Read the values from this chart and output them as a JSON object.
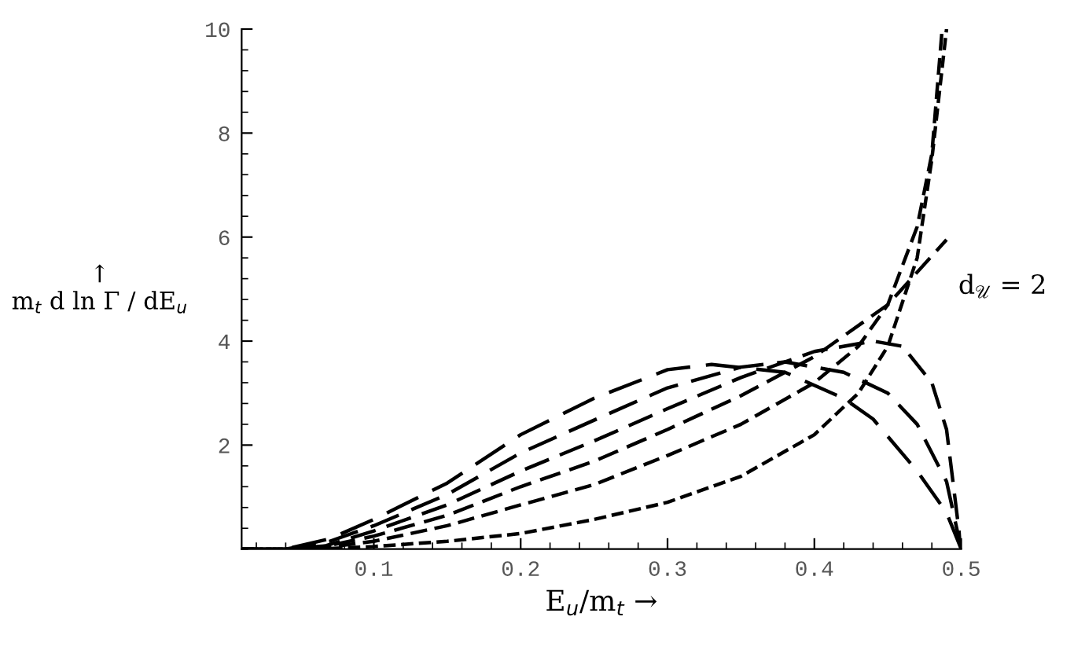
{
  "chart_data": {
    "type": "line",
    "xlabel": "E$_{u}$/m$_{t}$ →",
    "ylabel": "↑\nm$_{t}$ d ln Γ / dE$_{u}$",
    "xlim": [
      0.01,
      0.5
    ],
    "ylim": [
      0,
      10
    ],
    "xticks": [
      0.1,
      0.2,
      0.3,
      0.4,
      0.5
    ],
    "yticks": [
      2,
      4,
      6,
      8,
      10
    ],
    "line_style": "dashed",
    "marker": "none",
    "grid": false,
    "series": [
      {
        "color": "#000000",
        "x": [
          0.01,
          0.04,
          0.07,
          0.1,
          0.15,
          0.2,
          0.25,
          0.3,
          0.33,
          0.38,
          0.42,
          0.44,
          0.47,
          0.49,
          0.5
        ],
        "values": [
          0,
          0,
          0.2,
          0.57,
          1.27,
          2.2,
          2.9,
          3.45,
          3.55,
          3.4,
          2.9,
          2.5,
          1.5,
          0.7,
          0
        ]
      },
      {
        "color": "#000000",
        "x": [
          0.04,
          0.07,
          0.1,
          0.15,
          0.2,
          0.25,
          0.3,
          0.35,
          0.38,
          0.42,
          0.45,
          0.47,
          0.49,
          0.5
        ],
        "values": [
          0,
          0.15,
          0.45,
          1.05,
          1.85,
          2.48,
          3.1,
          3.5,
          3.6,
          3.4,
          3.0,
          2.4,
          1.3,
          0
        ]
      },
      {
        "color": "#000000",
        "x": [
          0.06,
          0.1,
          0.15,
          0.2,
          0.25,
          0.3,
          0.35,
          0.4,
          0.44,
          0.46,
          0.48,
          0.49,
          0.5
        ],
        "values": [
          0,
          0.35,
          0.85,
          1.5,
          2.08,
          2.7,
          3.3,
          3.8,
          4.0,
          3.9,
          3.2,
          2.3,
          0
        ]
      },
      {
        "name": "d$_{𝒰}$ = 2",
        "color": "#000000",
        "x": [
          0.01,
          0.04,
          0.07,
          0.1,
          0.15,
          0.2,
          0.25,
          0.3,
          0.35,
          0.4,
          0.45,
          0.49
        ],
        "values": [
          0,
          0,
          0.07,
          0.25,
          0.65,
          1.2,
          1.69,
          2.3,
          2.95,
          3.7,
          4.7,
          5.95
        ]
      },
      {
        "color": "#000000",
        "x": [
          0.01,
          0.04,
          0.07,
          0.1,
          0.15,
          0.2,
          0.25,
          0.3,
          0.35,
          0.4,
          0.43,
          0.45,
          0.47,
          0.48,
          0.487
        ],
        "values": [
          0,
          0,
          0.04,
          0.15,
          0.45,
          0.85,
          1.24,
          1.8,
          2.4,
          3.2,
          3.9,
          4.7,
          6.2,
          7.6,
          10
        ]
      },
      {
        "color": "#000000",
        "x": [
          0.01,
          0.04,
          0.07,
          0.1,
          0.15,
          0.2,
          0.25,
          0.3,
          0.35,
          0.4,
          0.43,
          0.45,
          0.47,
          0.48,
          0.49
        ],
        "values": [
          0,
          0,
          0.01,
          0.05,
          0.15,
          0.3,
          0.57,
          0.9,
          1.4,
          2.2,
          3.0,
          3.9,
          5.6,
          7.5,
          10
        ]
      }
    ]
  }
}
